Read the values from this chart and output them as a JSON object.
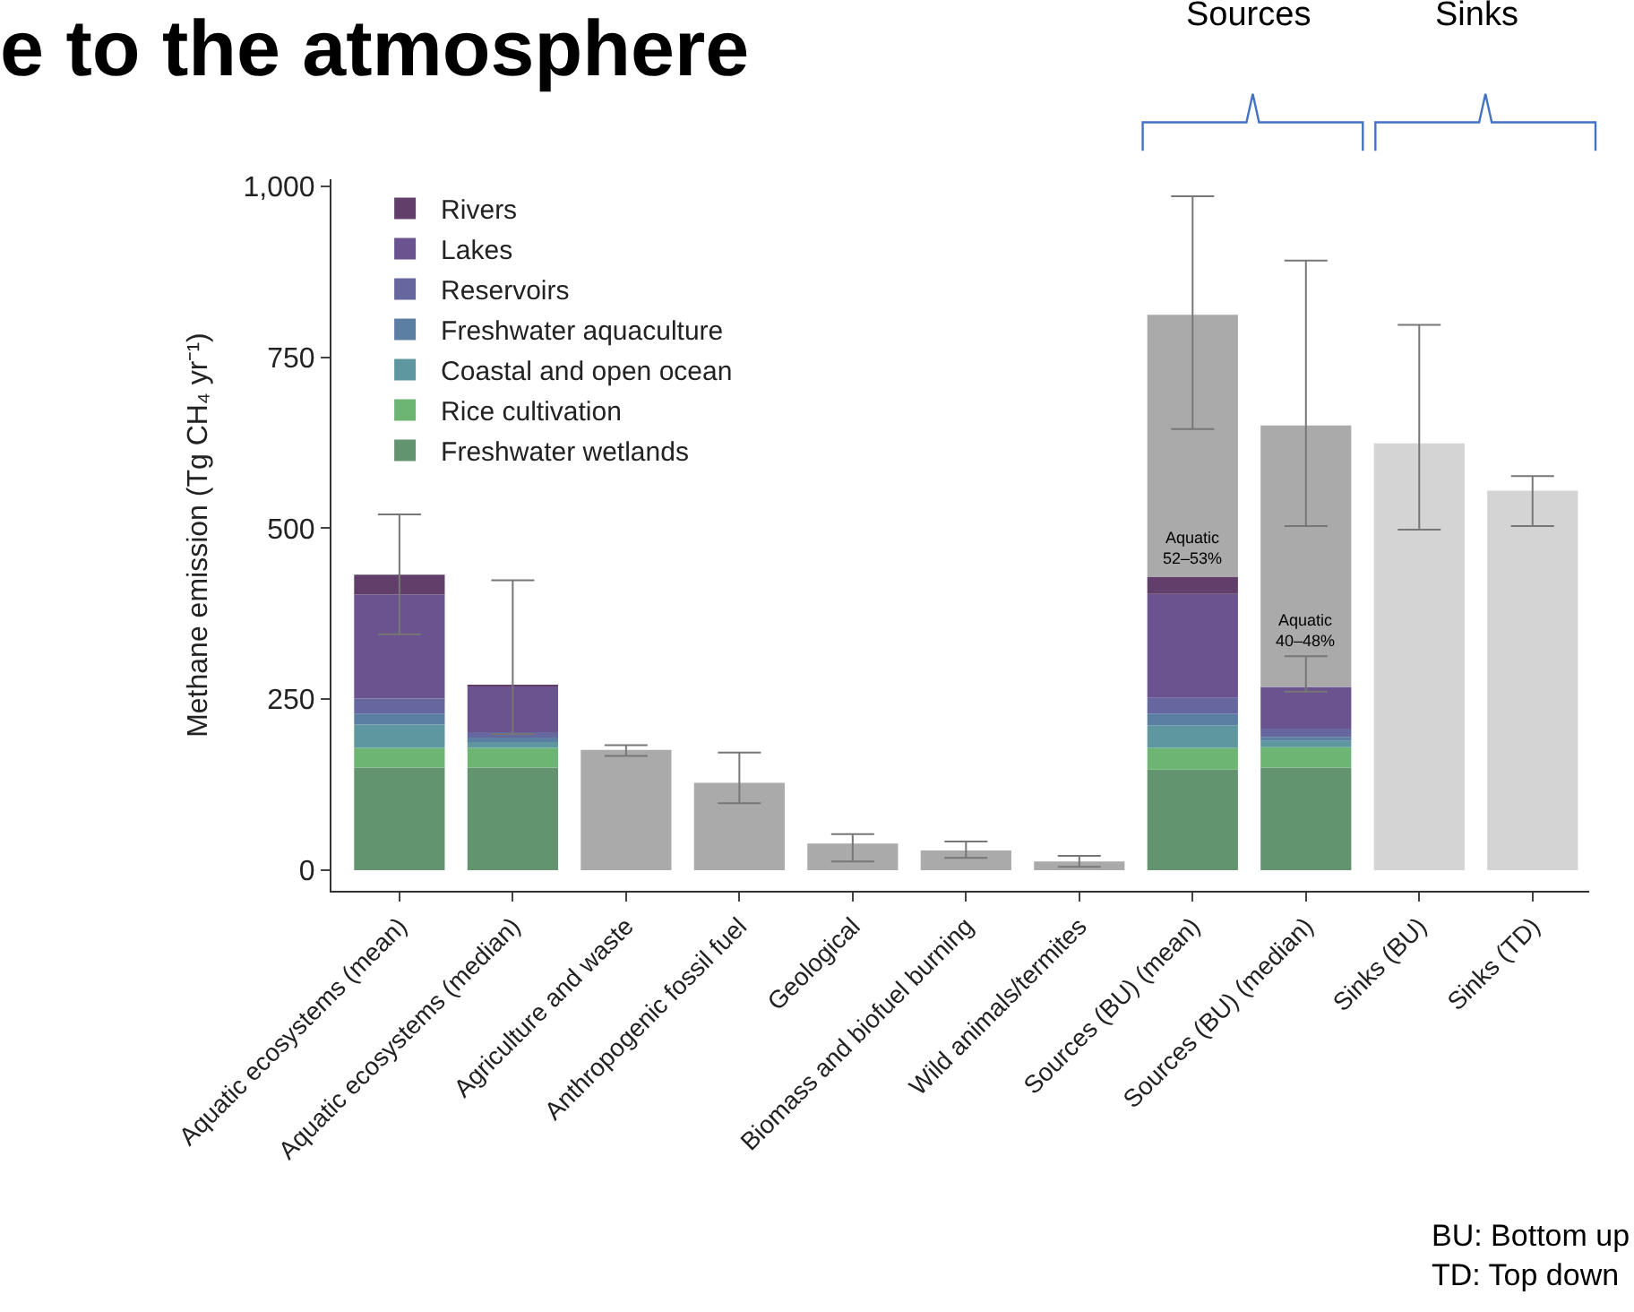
{
  "chart_data": {
    "type": "bar",
    "stacked": true,
    "title": "e to the atmosphere",
    "ylabel": "Methane emission (Tg CH₄ yr⁻¹)",
    "categories": [
      "Aquatic ecosystems (mean)",
      "Aquatic ecosystems (median)",
      "Agriculture and waste",
      "Anthropogenic fossil fuel",
      "Geological",
      "Biomass and biofuel burning",
      "Wild animals/termites",
      "Sources (BU) (mean)",
      "Sources (BU) (median)",
      "Sinks (BU)",
      "Sinks (TD)"
    ],
    "series": [
      {
        "name": "Freshwater wetlands",
        "color": "#62946f",
        "values": [
          150,
          150,
          null,
          null,
          null,
          null,
          null,
          147,
          150,
          null,
          null
        ]
      },
      {
        "name": "Rice cultivation",
        "color": "#6db573",
        "values": [
          29,
          29,
          null,
          null,
          null,
          null,
          null,
          32,
          30,
          null,
          null
        ]
      },
      {
        "name": "Coastal and open ocean",
        "color": "#5f97a0",
        "values": [
          34,
          10,
          null,
          null,
          null,
          null,
          null,
          33,
          9,
          null,
          null
        ]
      },
      {
        "name": "Freshwater aquaculture",
        "color": "#5b7ea3",
        "values": [
          16,
          5,
          null,
          null,
          null,
          null,
          null,
          17,
          6,
          null,
          null
        ]
      },
      {
        "name": "Reservoirs",
        "color": "#66679e",
        "values": [
          22,
          8,
          null,
          null,
          null,
          null,
          null,
          23,
          12,
          null,
          null
        ]
      },
      {
        "name": "Lakes",
        "color": "#6a538f",
        "values": [
          152,
          67,
          null,
          null,
          null,
          null,
          null,
          152,
          61,
          null,
          null
        ],
        "errors": [
          null,
          null,
          null,
          null,
          null,
          null,
          null,
          null,
          [
            261,
            313
          ],
          null,
          null
        ]
      },
      {
        "name": "Rivers",
        "color": "#623f6b",
        "values": [
          29,
          2,
          null,
          null,
          null,
          null,
          null,
          25,
          null,
          null,
          null
        ],
        "errors": [
          [
            345,
            520
          ],
          [
            199,
            424
          ],
          null,
          null,
          null,
          null,
          null,
          null,
          null,
          null,
          null
        ]
      },
      {
        "colors": [
          "#aaaaaa",
          "#aaaaaa",
          "#aaaaaa",
          "#aaaaaa",
          "#aaaaaa",
          "#aaaaaa",
          "#aaaaaa",
          "#aaaaaa",
          "#aaaaaa",
          "#d4d4d4",
          "#d4d4d4"
        ],
        "values": [
          null,
          null,
          176,
          128,
          39,
          29,
          13,
          383,
          382,
          624,
          555
        ],
        "errors": [
          null,
          null,
          [
            167,
            183
          ],
          [
            98,
            172
          ],
          [
            13,
            53
          ],
          [
            18,
            42
          ],
          [
            5,
            21
          ],
          [
            645,
            985
          ],
          [
            503,
            891
          ],
          [
            498,
            797
          ],
          [
            503,
            576
          ]
        ]
      }
    ],
    "ylim": [
      -30,
      1010
    ],
    "yticks": [
      0,
      250,
      500,
      {
        "value": 750,
        "label": "750"
      },
      {
        "value": 1000,
        "label": "1,000"
      }
    ],
    "grid": false,
    "legend": "top left",
    "annotations": [
      "Aquatic\n52–53%",
      "Aquatic\n40–48%",
      "Sources",
      "Sinks",
      "BU: Bottom up\nTD: Top down"
    ]
  }
}
